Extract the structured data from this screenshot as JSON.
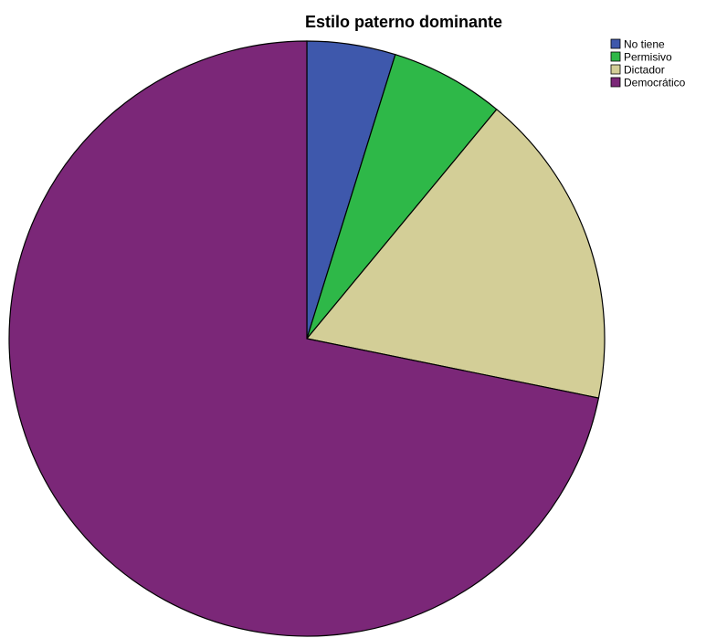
{
  "chart_data": {
    "type": "pie",
    "title": "Estilo paterno dominante",
    "start_angle_deg": 0,
    "direction": "clockwise",
    "legend_position": "top-right",
    "slices": [
      {
        "label": "No tiene",
        "value": 4.8,
        "color": "#3E58AC"
      },
      {
        "label": "Permisivo",
        "value": 6.2,
        "color": "#2EB848"
      },
      {
        "label": "Dictador",
        "value": 17.2,
        "color": "#D3CE97"
      },
      {
        "label": "Democrático",
        "value": 71.8,
        "color": "#7B2778"
      }
    ]
  }
}
